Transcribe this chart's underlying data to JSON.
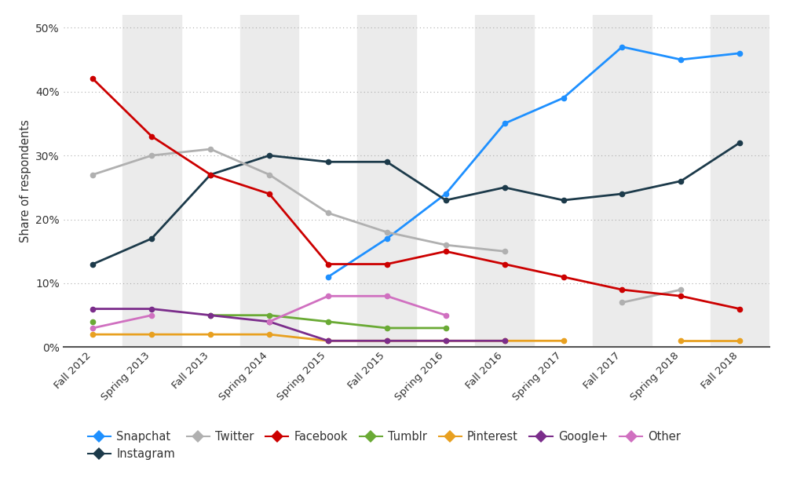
{
  "ylabel": "Share of respondents",
  "x_labels": [
    "Fall 2012",
    "Spring 2013",
    "Fall 2013",
    "Spring 2014",
    "Spring 2015",
    "Fall 2015",
    "Spring 2016",
    "Fall 2016",
    "Spring 2017",
    "Fall 2017",
    "Spring 2018",
    "Fall 2018"
  ],
  "series": {
    "Snapchat": {
      "color": "#1e90ff",
      "data": [
        null,
        null,
        null,
        null,
        11,
        17,
        24,
        35,
        39,
        47,
        45,
        46
      ]
    },
    "Instagram": {
      "color": "#1c3a4a",
      "data": [
        13,
        17,
        27,
        30,
        29,
        29,
        23,
        25,
        23,
        24,
        26,
        32
      ]
    },
    "Twitter": {
      "color": "#b0b0b0",
      "data": [
        27,
        30,
        31,
        27,
        21,
        18,
        16,
        15,
        null,
        7,
        9,
        null
      ]
    },
    "Facebook": {
      "color": "#cc0000",
      "data": [
        42,
        33,
        27,
        24,
        13,
        13,
        15,
        13,
        11,
        9,
        8,
        6
      ]
    },
    "Tumblr": {
      "color": "#6aaa35",
      "data": [
        4,
        null,
        5,
        5,
        4,
        3,
        3,
        null,
        null,
        null,
        null,
        null
      ]
    },
    "Pinterest": {
      "color": "#e8a020",
      "data": [
        2,
        2,
        2,
        2,
        1,
        1,
        1,
        1,
        1,
        null,
        1,
        1
      ]
    },
    "Google+": {
      "color": "#7b2d8b",
      "data": [
        6,
        6,
        5,
        4,
        1,
        1,
        1,
        1,
        null,
        null,
        null,
        null
      ]
    },
    "Other": {
      "color": "#d070c0",
      "data": [
        3,
        5,
        null,
        4,
        8,
        8,
        5,
        null,
        null,
        null,
        null,
        null
      ]
    }
  },
  "ylim": [
    0,
    52
  ],
  "yticks": [
    0,
    10,
    20,
    30,
    40,
    50
  ],
  "bg_color": "#ffffff",
  "stripe_color": "#ebebeb"
}
